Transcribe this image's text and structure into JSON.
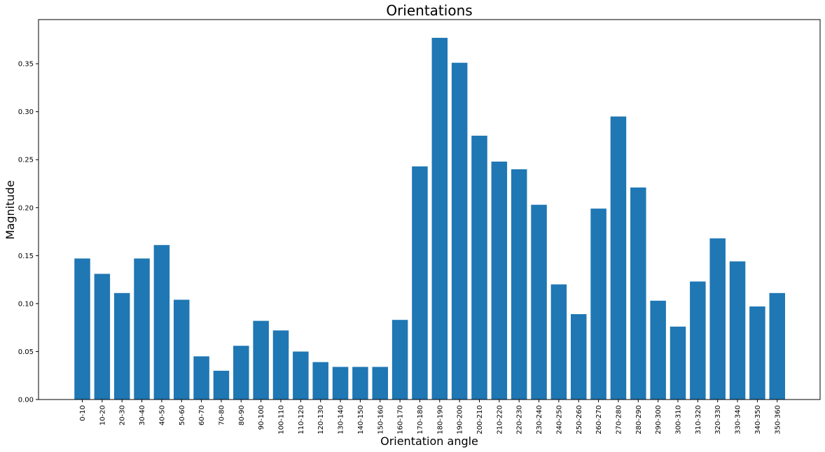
{
  "chart_data": {
    "type": "bar",
    "title": "Orientations",
    "xlabel": "Orientation angle",
    "ylabel": "Magnitude",
    "categories": [
      "0-10",
      "10-20",
      "20-30",
      "30-40",
      "40-50",
      "50-60",
      "60-70",
      "70-80",
      "80-90",
      "90-100",
      "100-110",
      "110-120",
      "120-130",
      "130-140",
      "140-150",
      "150-160",
      "160-170",
      "170-180",
      "180-190",
      "190-200",
      "200-210",
      "210-220",
      "220-230",
      "230-240",
      "240-250",
      "250-260",
      "260-270",
      "270-280",
      "280-290",
      "290-300",
      "300-310",
      "310-320",
      "320-330",
      "330-340",
      "340-350",
      "350-360"
    ],
    "values": [
      0.147,
      0.131,
      0.111,
      0.147,
      0.161,
      0.104,
      0.045,
      0.03,
      0.056,
      0.082,
      0.072,
      0.05,
      0.039,
      0.034,
      0.034,
      0.034,
      0.083,
      0.243,
      0.377,
      0.351,
      0.275,
      0.248,
      0.24,
      0.203,
      0.12,
      0.089,
      0.199,
      0.295,
      0.221,
      0.103,
      0.076,
      0.123,
      0.168,
      0.144,
      0.097,
      0.111
    ],
    "ylim": [
      0,
      0.396
    ],
    "yticks": [
      "0.00",
      "0.05",
      "0.10",
      "0.15",
      "0.20",
      "0.25",
      "0.30",
      "0.35"
    ],
    "bar_color": "#1f77b4",
    "grid": false,
    "legend": null
  }
}
